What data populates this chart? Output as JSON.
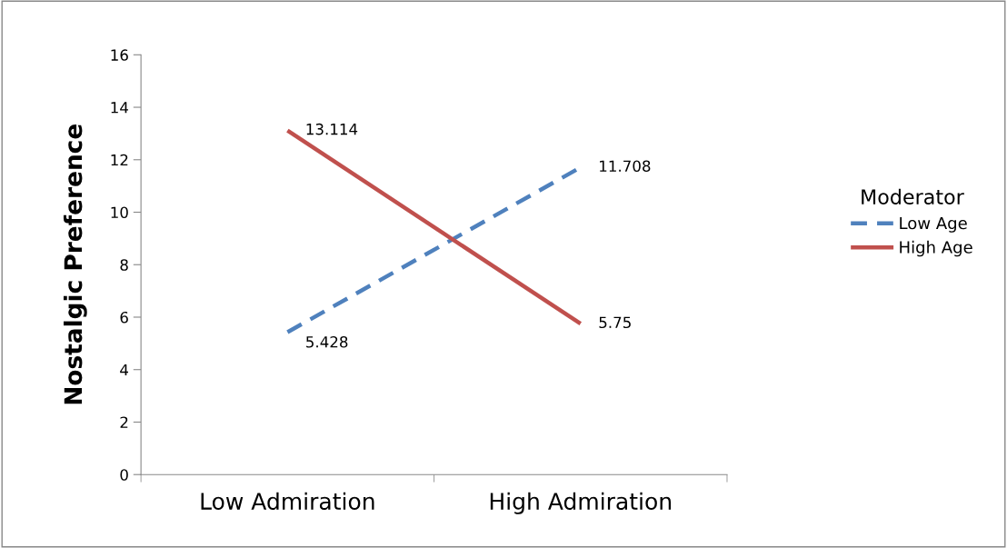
{
  "chart_data": {
    "type": "line",
    "categories": [
      "Low Admiration",
      "High Admiration"
    ],
    "ylabel": "Nostalgic Preference",
    "legend_title": "Moderator",
    "series": [
      {
        "name": "Low Age",
        "color": "#4f81bd",
        "line_style": "dashed",
        "values": [
          5.428,
          11.708
        ]
      },
      {
        "name": "High Age",
        "color": "#c0504d",
        "line_style": "solid",
        "values": [
          13.114,
          5.75
        ]
      }
    ],
    "ylim": [
      0,
      16
    ],
    "yticks": [
      0,
      2,
      4,
      6,
      8,
      10,
      12,
      14,
      16
    ],
    "data_labels": true,
    "legend": "right",
    "grid": false,
    "marker": "none"
  }
}
